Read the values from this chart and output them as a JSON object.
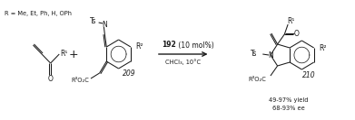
{
  "bg": "#ffffff",
  "lw": 0.75,
  "fs": 5.5,
  "fs_small": 4.8,
  "fs_bold": 5.5,
  "color": "#1a1a1a",
  "reagent": "192",
  "reagent_suffix": " (10 mol%)",
  "conditions": "CHCl₃, 10°C",
  "r_label": "R = Me, Et, Ph, H, OPh",
  "cmp209": "209",
  "cmp210": "210",
  "yield": "49-97% yield",
  "ee": "68-93% ee"
}
